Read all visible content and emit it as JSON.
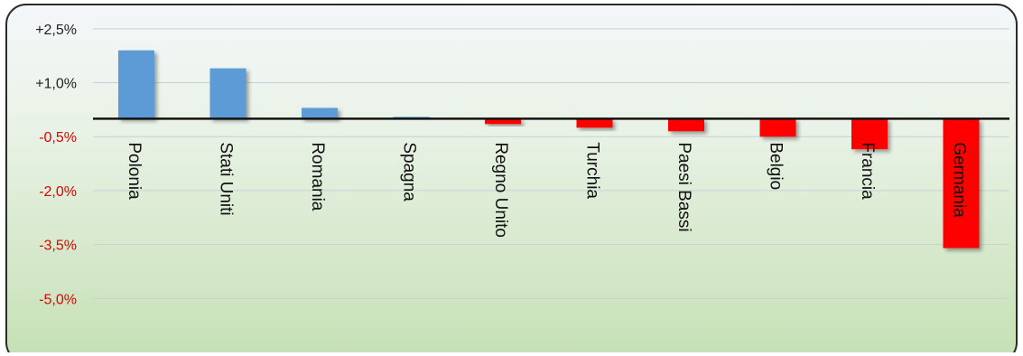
{
  "chart_data": {
    "type": "bar",
    "title": "",
    "xlabel": "",
    "ylabel": "",
    "categories": [
      "Polonia",
      "Stati Uniti",
      "Romania",
      "Spagna",
      "Regno Unito",
      "Turchia",
      "Paesi Bassi",
      "Belgio",
      "Francia",
      "Germania"
    ],
    "values": [
      1.9,
      1.4,
      0.3,
      0.05,
      -0.15,
      -0.25,
      -0.35,
      -0.5,
      -0.85,
      -3.6
    ],
    "ylim": [
      -6.5,
      3.2
    ],
    "yticks": [
      {
        "value": 2.5,
        "label": "+2,5%"
      },
      {
        "value": 1.0,
        "label": "+1,0%"
      },
      {
        "value": -0.5,
        "label": "-0,5%"
      },
      {
        "value": -2.0,
        "label": "-2,0%"
      },
      {
        "value": -3.5,
        "label": "-3,5%"
      },
      {
        "value": -5.0,
        "label": "-5,0%"
      }
    ],
    "grid": true,
    "legend": "none",
    "colors": {
      "positive": "#5b9bd5",
      "negative": "#ff0000",
      "positive_tick": "#222222",
      "negative_tick": "#e00000",
      "gridline": "#c8cfd6",
      "zero_line": "#111111",
      "bg_top": "#f4f7fb",
      "bg_bottom": "#c5e0b4"
    }
  }
}
